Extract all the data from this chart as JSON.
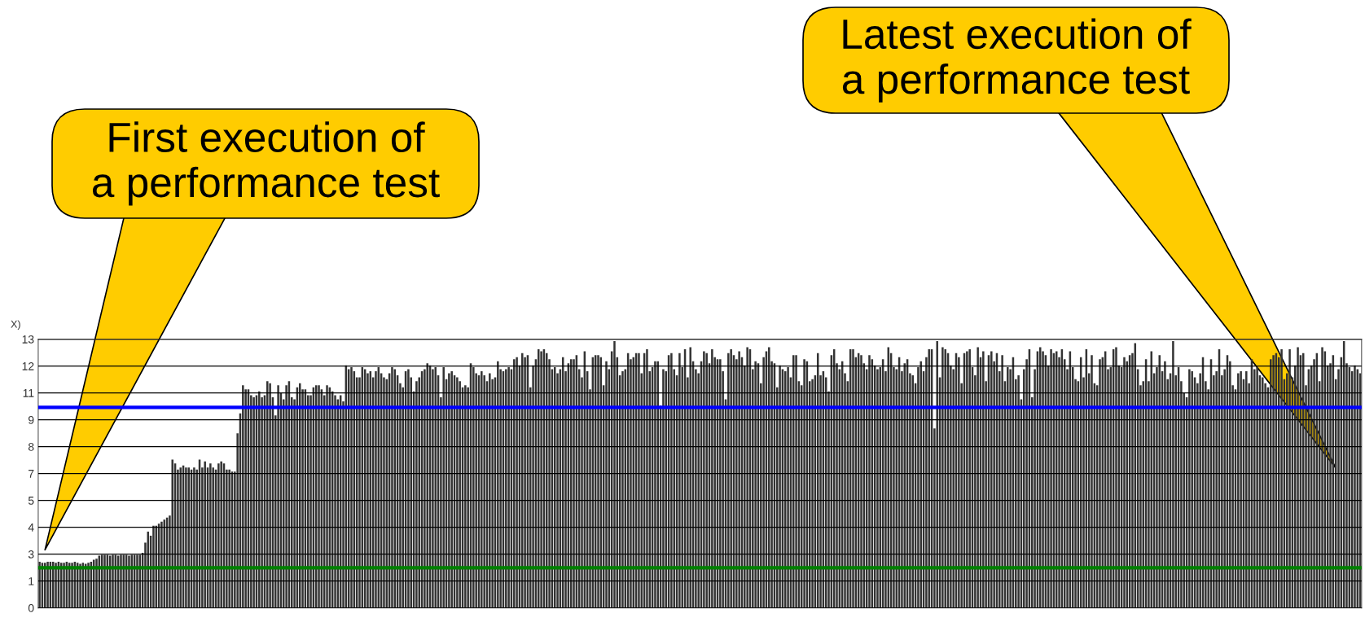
{
  "chart_data": {
    "type": "bar",
    "ylabel": "X)",
    "annotations": [
      "First execution of\na performance test",
      "Latest execution of\na performance test"
    ],
    "categories": [
      null,
      null,
      null,
      null,
      null,
      null,
      null,
      null,
      null,
      null,
      null,
      null,
      null,
      null,
      null,
      null,
      null,
      null,
      null,
      null,
      null,
      null,
      null,
      null,
      null,
      null,
      null,
      null,
      null,
      null,
      null,
      null,
      null,
      null,
      null,
      null,
      null,
      null,
      null,
      null,
      null,
      null,
      null,
      null,
      null,
      null,
      null,
      null,
      null,
      null,
      null,
      null,
      null,
      null,
      null,
      null,
      null,
      null,
      null,
      null,
      null,
      null,
      null,
      null,
      null,
      null,
      null,
      null,
      null,
      null,
      null,
      null,
      null,
      null,
      null,
      null,
      null,
      null,
      null,
      null,
      null,
      null,
      null,
      null,
      null,
      null,
      null,
      null,
      null,
      null,
      null,
      null,
      null,
      null,
      null,
      null,
      null,
      null,
      null,
      null,
      null,
      null,
      null,
      null,
      null,
      null,
      null,
      null,
      null,
      null,
      null,
      null,
      null,
      null,
      null,
      null,
      null,
      null,
      null,
      null,
      null,
      null,
      null,
      null,
      null,
      null,
      null,
      null,
      null,
      null,
      null,
      null,
      null,
      null,
      null,
      null,
      null,
      null,
      null,
      null,
      null,
      null,
      null,
      null,
      null,
      null,
      null,
      null,
      null,
      null,
      null,
      null,
      null,
      null,
      null,
      null,
      null,
      null,
      null,
      null,
      null,
      null,
      null,
      null,
      null,
      null,
      null,
      null,
      null,
      null,
      null,
      null,
      null,
      null,
      null,
      null,
      null,
      null,
      null,
      null,
      null,
      null,
      null,
      null,
      null,
      null,
      null,
      null,
      null,
      null,
      null,
      null,
      null,
      null,
      null,
      null,
      null,
      null,
      null,
      null,
      null,
      null,
      null,
      null,
      null,
      null,
      null,
      null,
      null,
      null,
      null,
      null,
      null,
      null,
      null,
      null,
      null,
      null,
      null,
      null,
      null,
      null,
      null,
      null,
      null,
      null,
      null,
      null,
      null,
      null,
      null,
      null,
      null,
      null,
      null,
      null,
      null,
      null,
      null,
      null,
      null,
      null,
      null,
      null,
      null,
      null,
      null,
      null,
      null,
      null,
      null,
      null,
      null,
      null,
      null,
      null,
      null,
      null,
      null,
      null,
      null,
      null,
      null,
      null,
      null,
      null,
      null,
      null,
      null,
      null,
      null,
      null,
      null,
      null,
      null,
      null,
      null,
      null,
      null,
      null,
      null,
      null,
      null,
      null,
      null,
      null,
      null,
      null,
      null,
      null,
      null,
      null,
      null,
      null,
      null,
      null,
      null,
      null,
      null,
      null,
      null,
      null,
      null,
      null,
      null,
      null,
      null,
      null,
      null,
      null,
      null,
      null,
      null,
      null,
      null,
      null,
      null,
      null,
      null,
      null,
      null,
      null,
      null,
      null,
      null,
      null,
      null,
      null,
      null,
      null,
      null,
      null,
      null,
      null,
      null,
      null,
      null,
      null,
      null,
      null,
      null,
      null,
      null,
      null,
      null,
      null,
      null,
      null,
      null,
      null,
      null,
      null,
      null,
      null,
      null,
      null,
      null,
      null,
      null,
      null,
      null,
      null,
      null,
      null,
      null,
      null,
      null,
      null,
      null,
      null,
      null,
      null,
      null,
      null,
      null,
      null,
      null,
      null,
      null,
      null,
      null,
      null,
      null,
      null,
      null,
      null,
      null,
      null,
      null,
      null,
      null,
      null,
      null,
      null,
      null,
      null,
      null,
      null,
      null,
      null,
      null,
      null,
      null,
      null,
      null,
      null,
      null,
      null,
      null,
      null,
      null,
      null,
      null,
      null,
      null,
      null,
      null,
      null,
      null,
      null,
      null,
      null,
      null,
      null,
      null,
      null,
      null,
      null,
      null,
      null,
      null,
      null,
      null,
      null,
      null,
      null,
      null,
      null,
      null,
      null,
      null,
      null,
      null,
      null,
      null,
      null,
      null,
      null,
      null,
      null,
      null,
      null,
      null,
      null,
      null,
      null,
      null,
      null,
      null,
      null,
      null,
      null,
      null,
      null,
      null,
      null,
      null,
      null,
      null,
      null,
      null,
      null,
      null,
      null,
      null,
      null,
      null,
      null,
      null,
      null,
      null,
      null,
      null,
      null,
      null,
      null,
      null,
      null
    ],
    "series": [
      {
        "color": "#333333",
        "values": [
          2.3,
          2.25,
          2.25,
          2.3,
          2.3,
          2.3,
          2.25,
          2.3,
          2.25,
          2.25,
          2.3,
          2.25,
          2.25,
          2.3,
          2.25,
          2.2,
          2.25,
          2.2,
          2.25,
          2.3,
          2.4,
          2.45,
          2.6,
          2.65,
          2.65,
          2.65,
          2.6,
          2.65,
          2.65,
          2.6,
          2.65,
          2.65,
          2.65,
          2.6,
          2.65,
          2.65,
          2.65,
          2.65,
          2.75,
          3.25,
          3.8,
          3.6,
          4.1,
          4.1,
          4.2,
          4.3,
          4.4,
          4.5,
          4.6,
          7.4,
          7.2,
          6.9,
          7.0,
          7.1,
          7.0,
          7.0,
          6.9,
          7.0,
          6.9,
          7.4,
          7.0,
          7.3,
          7.0,
          7.2,
          7.0,
          6.9,
          7.2,
          7.3,
          7.2,
          6.9,
          6.9,
          6.8,
          6.8,
          8.7,
          9.7,
          11.1,
          10.9,
          10.9,
          10.6,
          10.5,
          10.6,
          10.8,
          10.5,
          10.6,
          11.3,
          11.2,
          10.5,
          9.6,
          11.1,
          10.7,
          10.4,
          11.1,
          11.3,
          10.5,
          10.4,
          11.0,
          11.2,
          10.9,
          10.9,
          10.6,
          10.6,
          11.0,
          11.1,
          11.1,
          10.9,
          10.6,
          11.1,
          11.0,
          10.8,
          10.6,
          10.4,
          10.6,
          10.3,
          12.1,
          11.9,
          12.0,
          11.8,
          11.5,
          11.5,
          12.0,
          11.9,
          11.7,
          11.8,
          11.5,
          11.8,
          12.0,
          11.7,
          11.5,
          11.4,
          11.7,
          12.0,
          11.9,
          11.6,
          11.2,
          11.0,
          11.8,
          11.9,
          11.5,
          10.8,
          11.3,
          11.5,
          11.8,
          11.9,
          12.2,
          12.1,
          11.9,
          12.0,
          11.6,
          10.5,
          12.0,
          11.4,
          11.7,
          11.8,
          11.6,
          11.5,
          11.3,
          11.0,
          11.1,
          11.0,
          12.2,
          12.0,
          11.7,
          11.6,
          11.8,
          11.6,
          11.3,
          11.7,
          11.4,
          11.5,
          12.3,
          11.9,
          11.8,
          11.9,
          12.0,
          11.9,
          12.4,
          12.5,
          12.1,
          12.7,
          12.5,
          12.6,
          11.0,
          12.1,
          12.4,
          12.9,
          12.8,
          12.9,
          12.7,
          12.4,
          11.9,
          12.0,
          11.7,
          11.9,
          12.5,
          11.8,
          12.2,
          12.4,
          12.4,
          12.6,
          11.9,
          11.5,
          12.8,
          11.8,
          10.9,
          12.5,
          12.6,
          12.6,
          12.5,
          11.1,
          12.3,
          11.9,
          12.8,
          13.3,
          12.5,
          11.6,
          11.8,
          11.9,
          12.7,
          12.4,
          12.5,
          12.7,
          12.7,
          11.7,
          12.7,
          12.9,
          11.8,
          12.0,
          12.3,
          12.3,
          10.1,
          11.9,
          11.8,
          12.6,
          12.7,
          11.9,
          11.6,
          12.7,
          12.0,
          12.9,
          11.5,
          13.0,
          12.3,
          11.9,
          11.7,
          12.3,
          12.8,
          12.7,
          12.2,
          12.9,
          12.5,
          12.4,
          12.4,
          11.8,
          10.4,
          12.7,
          12.9,
          12.6,
          12.4,
          12.8,
          12.5,
          12.1,
          13.0,
          12.9,
          11.9,
          12.3,
          12.2,
          11.2,
          12.5,
          12.8,
          13.0,
          12.3,
          12.2,
          11.0,
          12.1,
          11.9,
          11.8,
          12.0,
          11.5,
          12.6,
          12.6,
          11.3,
          11.1,
          12.4,
          12.3,
          11.3,
          11.4,
          11.6,
          12.7,
          11.6,
          11.8,
          11.5,
          10.8,
          12.6,
          12.9,
          12.2,
          11.9,
          12.3,
          11.7,
          11.3,
          12.9,
          12.9,
          12.5,
          12.7,
          12.6,
          12.2,
          11.9,
          12.6,
          12.4,
          12.1,
          11.9,
          12.0,
          12.4,
          11.8,
          13.0,
          12.7,
          12.0,
          11.9,
          12.5,
          11.8,
          12.2,
          12.4,
          11.7,
          11.6,
          11.2,
          12.0,
          12.3,
          11.8,
          12.5,
          12.9,
          12.9,
          8.95,
          13.3,
          11.5,
          13.0,
          12.9,
          12.7,
          12.1,
          11.9,
          12.7,
          12.5,
          11.2,
          12.7,
          12.8,
          12.9,
          12.0,
          11.6,
          13.0,
          12.5,
          12.8,
          11.3,
          12.6,
          12.8,
          12.3,
          12.7,
          11.8,
          12.6,
          11.3,
          12.0,
          11.9,
          12.5,
          11.4,
          11.6,
          10.4,
          11.9,
          12.4,
          12.9,
          10.5,
          11.9,
          12.8,
          13.0,
          12.8,
          12.6,
          12.1,
          12.9,
          12.7,
          12.8,
          12.5,
          12.9,
          12.4,
          11.9,
          12.8,
          12.0,
          11.4,
          11.3,
          12.5,
          11.5,
          12.9,
          11.7,
          12.6,
          11.2,
          11.1,
          12.4,
          12.5,
          12.8,
          11.9,
          12.0,
          12.9,
          13.0,
          12.1,
          12.0,
          12.5,
          12.3,
          12.6,
          12.7,
          13.2,
          11.9,
          11.1,
          11.3,
          12.4,
          11.3,
          12.8,
          11.7,
          12.0,
          12.6,
          11.8,
          12.3,
          11.4,
          11.7,
          13.3,
          11.6,
          12.0,
          11.3,
          10.7,
          10.5,
          11.9,
          11.8,
          11.5,
          11.2,
          11.7,
          12.5,
          11.3,
          10.9,
          12.4,
          11.6,
          11.8,
          12.9,
          11.6,
          11.9,
          12.6,
          12.3,
          11.1,
          10.9,
          11.7,
          11.8,
          11.4,
          11.8,
          11.2,
          12.4,
          11.9,
          12.0,
          11.6,
          11.5,
          11.2,
          11.0,
          12.4,
          12.6,
          12.7,
          12.5,
          12.9,
          11.4,
          11.7,
          12.9,
          11.5,
          12.1,
          13.0,
          12.6,
          12.7,
          11.1,
          11.9,
          12.1,
          12.4,
          12.7,
          11.3,
          13.0,
          12.8,
          12.1,
          12.2,
          12.6,
          11.4,
          11.9,
          12.5,
          13.3,
          12.2,
          12.0,
          11.8,
          12.1,
          11.9,
          11.7
        ]
      }
    ],
    "ylim": [
      0,
      13.4
    ],
    "yticks": [
      0,
      {
        "value": 1.34,
        "label": "1"
      },
      {
        "value": 2.68,
        "label": "3"
      },
      {
        "value": 4.02,
        "label": "4"
      },
      {
        "value": 5.36,
        "label": "5"
      },
      {
        "value": 6.7,
        "label": "7"
      },
      {
        "value": 8.04,
        "label": "8"
      },
      {
        "value": 9.38,
        "label": "9"
      },
      {
        "value": 10.72,
        "label": "11"
      },
      {
        "value": 12.06,
        "label": "12"
      },
      {
        "value": 13.4,
        "label": "13"
      }
    ],
    "ref_lines": [
      {
        "axis": "y",
        "value": 10.0,
        "color": "#0000ff"
      },
      {
        "axis": "y",
        "value": 2.0,
        "color": "#008000"
      }
    ],
    "grid": "y",
    "tick_labels": "y"
  }
}
